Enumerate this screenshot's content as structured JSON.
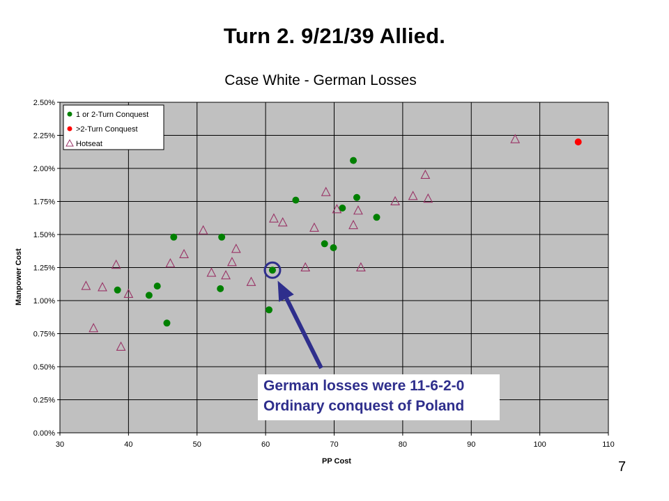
{
  "slide": {
    "title": "Turn 2.  9/21/39 Allied.",
    "page_number": "7"
  },
  "callout": {
    "line1": "German losses were 11-6-2-0",
    "line2": "Ordinary conquest of Poland",
    "color": "#2e2e8c",
    "points_to": {
      "x": 61,
      "y": 1.23
    }
  },
  "chart_data": {
    "type": "scatter",
    "title": "Case White - German Losses",
    "xlabel": "PP Cost",
    "ylabel": "Manpower Cost",
    "xlim": [
      30,
      110
    ],
    "ylim": [
      0,
      2.5
    ],
    "x_ticks": [
      30,
      40,
      50,
      60,
      70,
      80,
      90,
      100,
      110
    ],
    "x_tick_labels": [
      "30",
      "40",
      "50",
      "60",
      "70",
      "80",
      "90",
      "100",
      "110"
    ],
    "y_ticks": [
      0,
      0.25,
      0.5,
      0.75,
      1.0,
      1.25,
      1.5,
      1.75,
      2.0,
      2.25,
      2.5
    ],
    "y_tick_labels": [
      "0.00%",
      "0.25%",
      "0.50%",
      "0.75%",
      "1.00%",
      "1.25%",
      "1.50%",
      "1.75%",
      "2.00%",
      "2.25%",
      "2.50%"
    ],
    "grid": true,
    "plot_background": "#c0c0c0",
    "legend_position": "top-left",
    "series": [
      {
        "name": "1 or 2-Turn Conquest",
        "marker": "circle",
        "color": "#008000",
        "points": [
          {
            "x": 38.4,
            "y": 1.08
          },
          {
            "x": 43,
            "y": 1.04
          },
          {
            "x": 44.2,
            "y": 1.11
          },
          {
            "x": 45.6,
            "y": 0.83
          },
          {
            "x": 46.6,
            "y": 1.48
          },
          {
            "x": 53.4,
            "y": 1.09
          },
          {
            "x": 53.6,
            "y": 1.48
          },
          {
            "x": 60.5,
            "y": 0.93
          },
          {
            "x": 61,
            "y": 1.23
          },
          {
            "x": 64.4,
            "y": 1.76
          },
          {
            "x": 68.6,
            "y": 1.43
          },
          {
            "x": 69.9,
            "y": 1.4
          },
          {
            "x": 71.2,
            "y": 1.7
          },
          {
            "x": 72.8,
            "y": 2.06
          },
          {
            "x": 73.3,
            "y": 1.78
          },
          {
            "x": 76.2,
            "y": 1.63
          }
        ]
      },
      {
        "name": ">2-Turn Conquest",
        "marker": "circle",
        "color": "#ff0000",
        "points": [
          {
            "x": 105.6,
            "y": 2.2
          }
        ]
      },
      {
        "name": "Hotseat",
        "marker": "triangle",
        "color": "#993366",
        "points": [
          {
            "x": 33.8,
            "y": 1.11
          },
          {
            "x": 34.9,
            "y": 0.79
          },
          {
            "x": 36.2,
            "y": 1.1
          },
          {
            "x": 38.2,
            "y": 1.27
          },
          {
            "x": 38.9,
            "y": 0.65
          },
          {
            "x": 40,
            "y": 1.05
          },
          {
            "x": 46.1,
            "y": 1.28
          },
          {
            "x": 48.1,
            "y": 1.35
          },
          {
            "x": 50.9,
            "y": 1.53
          },
          {
            "x": 52.1,
            "y": 1.21
          },
          {
            "x": 54.2,
            "y": 1.19
          },
          {
            "x": 55.1,
            "y": 1.29
          },
          {
            "x": 55.7,
            "y": 1.39
          },
          {
            "x": 57.9,
            "y": 1.14
          },
          {
            "x": 61.2,
            "y": 1.62
          },
          {
            "x": 62.5,
            "y": 1.59
          },
          {
            "x": 65.8,
            "y": 1.25
          },
          {
            "x": 67.1,
            "y": 1.55
          },
          {
            "x": 68.8,
            "y": 1.82
          },
          {
            "x": 70.4,
            "y": 1.69
          },
          {
            "x": 72.8,
            "y": 1.57
          },
          {
            "x": 73.5,
            "y": 1.68
          },
          {
            "x": 73.9,
            "y": 1.25
          },
          {
            "x": 78.9,
            "y": 1.75
          },
          {
            "x": 81.5,
            "y": 1.79
          },
          {
            "x": 83.3,
            "y": 1.95
          },
          {
            "x": 83.7,
            "y": 1.77
          },
          {
            "x": 96.4,
            "y": 2.22
          }
        ]
      }
    ]
  }
}
